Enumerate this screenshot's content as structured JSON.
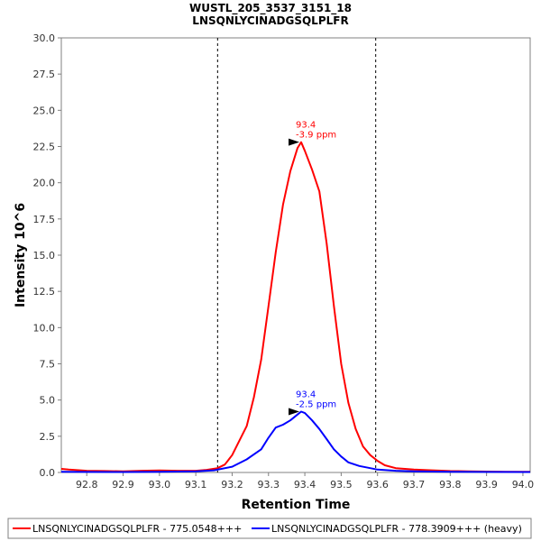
{
  "chart_data": {
    "type": "line",
    "title": "WUSTL_205_3537_3151_18",
    "subtitle": "LNSQNLYCINADGSQLPLFR",
    "xlabel": "Retention Time",
    "ylabel": "Intensity 10^6",
    "xlim": [
      92.73,
      94.02
    ],
    "ylim": [
      0,
      30
    ],
    "x_ticks": [
      "92.8",
      "92.9",
      "93.0",
      "93.1",
      "93.2",
      "93.3",
      "93.4",
      "93.5",
      "93.6",
      "93.7",
      "93.8",
      "93.9",
      "94.0"
    ],
    "y_ticks": [
      "0.0",
      "2.5",
      "5.0",
      "7.5",
      "10.0",
      "12.5",
      "15.0",
      "17.5",
      "20.0",
      "22.5",
      "25.0",
      "27.5",
      "30.0"
    ],
    "boundaries": [
      93.16,
      93.595
    ],
    "series": [
      {
        "name": "LNSQNLYCINADGSQLPLFR - 775.0548+++",
        "color": "#ff0000",
        "x": [
          92.73,
          92.75,
          92.8,
          92.85,
          92.9,
          92.95,
          93.0,
          93.05,
          93.1,
          93.13,
          93.16,
          93.18,
          93.2,
          93.22,
          93.24,
          93.26,
          93.28,
          93.3,
          93.32,
          93.34,
          93.36,
          93.38,
          93.39,
          93.4,
          93.42,
          93.44,
          93.46,
          93.48,
          93.5,
          93.52,
          93.54,
          93.56,
          93.58,
          93.6,
          93.62,
          93.65,
          93.7,
          93.75,
          93.8,
          93.85,
          93.9,
          93.95,
          94.0,
          94.02
        ],
        "y": [
          0.25,
          0.2,
          0.12,
          0.1,
          0.08,
          0.12,
          0.14,
          0.12,
          0.12,
          0.18,
          0.3,
          0.55,
          1.2,
          2.2,
          3.2,
          5.2,
          7.8,
          11.5,
          15.2,
          18.5,
          20.8,
          22.4,
          22.8,
          22.2,
          20.9,
          19.4,
          15.8,
          11.5,
          7.5,
          4.8,
          3.0,
          1.8,
          1.2,
          0.8,
          0.5,
          0.3,
          0.2,
          0.15,
          0.1,
          0.08,
          0.06,
          0.05,
          0.05,
          0.05
        ],
        "annotation": {
          "x": 93.39,
          "y": 22.8,
          "rt": "93.4",
          "ppm": "-3.9 ppm"
        }
      },
      {
        "name": "LNSQNLYCINADGSQLPLFR - 778.3909+++ (heavy)",
        "color": "#0000ff",
        "x": [
          92.73,
          92.8,
          92.9,
          93.0,
          93.1,
          93.15,
          93.2,
          93.24,
          93.28,
          93.3,
          93.32,
          93.34,
          93.36,
          93.38,
          93.39,
          93.4,
          93.42,
          93.44,
          93.46,
          93.48,
          93.5,
          93.52,
          93.55,
          93.58,
          93.6,
          93.65,
          93.7,
          93.8,
          93.9,
          94.0,
          94.02
        ],
        "y": [
          0.05,
          0.04,
          0.03,
          0.05,
          0.08,
          0.15,
          0.4,
          0.9,
          1.6,
          2.4,
          3.1,
          3.3,
          3.6,
          4.0,
          4.2,
          4.1,
          3.6,
          3.0,
          2.3,
          1.6,
          1.1,
          0.7,
          0.45,
          0.3,
          0.2,
          0.12,
          0.08,
          0.05,
          0.04,
          0.03,
          0.03
        ],
        "annotation": {
          "x": 93.39,
          "y": 4.2,
          "rt": "93.4",
          "ppm": "-2.5 ppm"
        }
      }
    ]
  }
}
